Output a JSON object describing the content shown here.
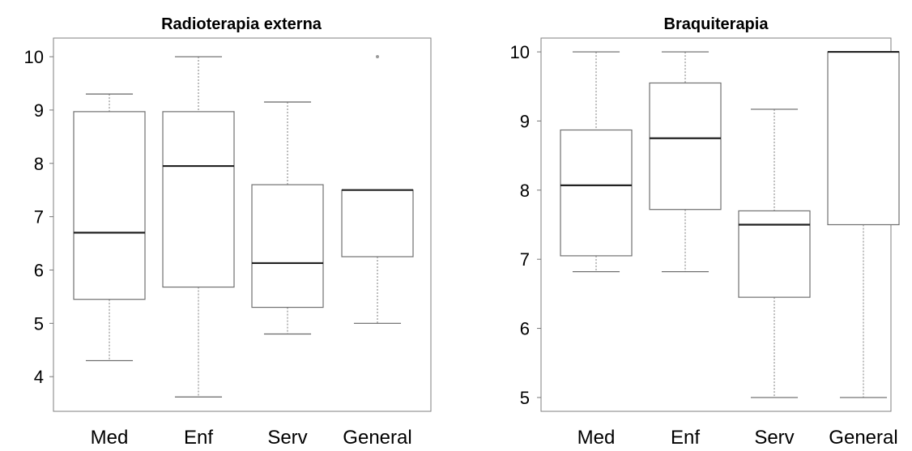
{
  "chart_data": [
    {
      "type": "box",
      "title": "Radioterapia externa",
      "xlabel": "",
      "ylabel": "",
      "categories": [
        "Med",
        "Enf",
        "Serv",
        "General"
      ],
      "yticks": [
        4,
        5,
        6,
        7,
        8,
        9,
        10
      ],
      "ylim": [
        3.35,
        10.35
      ],
      "boxes": [
        {
          "category": "Med",
          "min": 4.3,
          "q1": 5.45,
          "median": 6.7,
          "q3": 8.97,
          "max": 9.3,
          "outliers": []
        },
        {
          "category": "Enf",
          "min": 3.62,
          "q1": 5.68,
          "median": 7.95,
          "q3": 8.97,
          "max": 10.0,
          "outliers": []
        },
        {
          "category": "Serv",
          "min": 4.8,
          "q1": 5.3,
          "median": 6.13,
          "q3": 7.6,
          "max": 9.15,
          "outliers": []
        },
        {
          "category": "General",
          "min": 5.0,
          "q1": 6.25,
          "median": 7.5,
          "q3": 7.5,
          "max": 7.5,
          "outliers": [
            10.0
          ]
        }
      ]
    },
    {
      "type": "box",
      "title": "Braquiterapia",
      "xlabel": "",
      "ylabel": "",
      "categories": [
        "Med",
        "Enf",
        "Serv",
        "General"
      ],
      "yticks": [
        5,
        6,
        7,
        8,
        9,
        10
      ],
      "ylim": [
        4.8,
        10.2
      ],
      "boxes": [
        {
          "category": "Med",
          "min": 6.82,
          "q1": 7.05,
          "median": 8.07,
          "q3": 8.87,
          "max": 10.0,
          "outliers": []
        },
        {
          "category": "Enf",
          "min": 6.82,
          "q1": 7.72,
          "median": 8.75,
          "q3": 9.55,
          "max": 10.0,
          "outliers": []
        },
        {
          "category": "Serv",
          "min": 5.0,
          "q1": 6.45,
          "median": 7.5,
          "q3": 7.7,
          "max": 9.17,
          "outliers": []
        },
        {
          "category": "General",
          "min": 5.0,
          "q1": 7.5,
          "median": 10.0,
          "q3": 10.0,
          "max": 10.0,
          "outliers": []
        }
      ]
    }
  ]
}
